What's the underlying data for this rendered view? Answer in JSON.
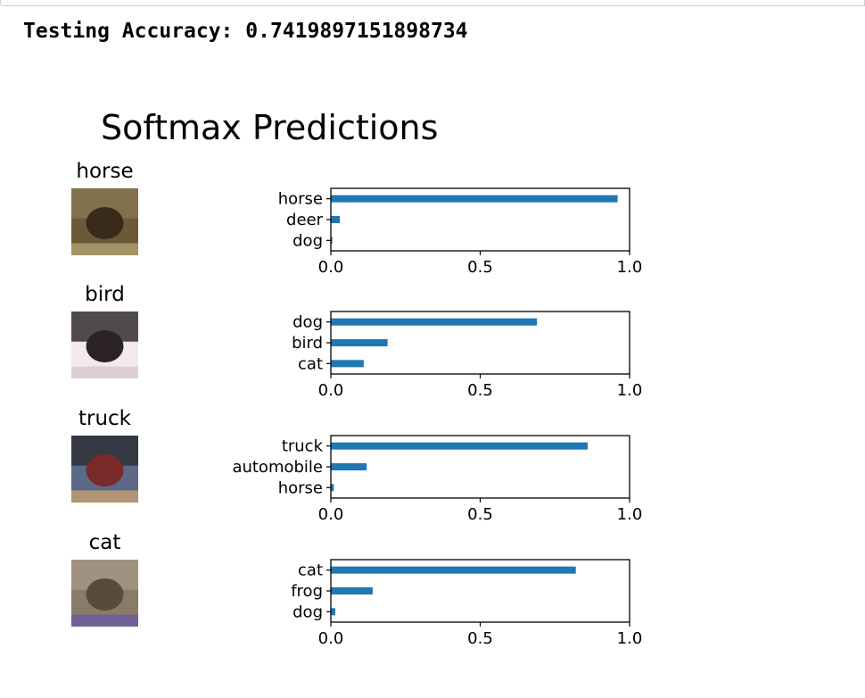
{
  "output": {
    "accuracy_label": "Testing Accuracy:",
    "accuracy_value": "0.7419897151898734"
  },
  "colors": {
    "bar": "#1f77b4",
    "axis": "#000000"
  },
  "chart_data": {
    "type": "bar",
    "orientation": "horizontal",
    "title": "Softmax Predictions",
    "xlim": [
      0,
      1
    ],
    "xticks": [
      "0.0",
      "0.5",
      "1.0"
    ],
    "grid": false,
    "legend": "none",
    "panels": [
      {
        "image_title": "horse",
        "image_colors": [
          "#6a5a3a",
          "#8a7a55",
          "#3a2a1a",
          "#b0a070"
        ],
        "categories": [
          "horse",
          "deer",
          "dog"
        ],
        "values": [
          0.96,
          0.03,
          0.005
        ]
      },
      {
        "image_title": "bird",
        "image_colors": [
          "#f1e9ea",
          "#1a1416",
          "#2b2226",
          "#d9c9cc"
        ],
        "categories": [
          "dog",
          "bird",
          "cat"
        ],
        "values": [
          0.69,
          0.19,
          0.11
        ]
      },
      {
        "image_title": "truck",
        "image_colors": [
          "#5a6a88",
          "#2a2a2e",
          "#7a2a2a",
          "#c8a070"
        ],
        "categories": [
          "truck",
          "automobile",
          "horse"
        ],
        "values": [
          0.86,
          0.12,
          0.01
        ]
      },
      {
        "image_title": "cat",
        "image_colors": [
          "#8a7a6a",
          "#a89a88",
          "#5a4a3a",
          "#6a5aa0"
        ],
        "categories": [
          "cat",
          "frog",
          "dog"
        ],
        "values": [
          0.82,
          0.14,
          0.015
        ]
      }
    ]
  }
}
